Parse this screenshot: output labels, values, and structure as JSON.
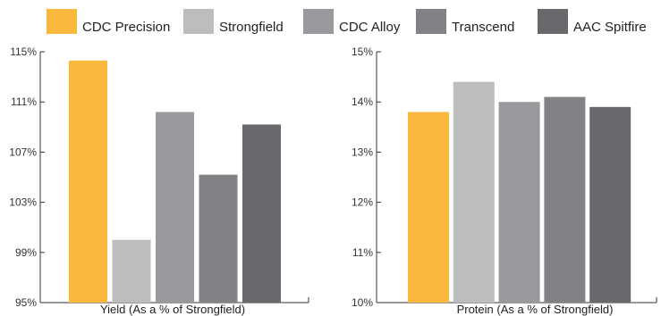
{
  "legend": [
    {
      "name": "CDC Precision",
      "color": "#fbb83f"
    },
    {
      "name": "Strongfield",
      "color": "#bdbcbf"
    },
    {
      "name": "CDC Alloy",
      "color": "#9a999d"
    },
    {
      "name": "Transcend",
      "color": "#828185"
    },
    {
      "name": "AAC Spitfire",
      "color": "#69686c"
    }
  ],
  "chart_data": [
    {
      "type": "bar",
      "xlabel": "Yield (As a % of Strongfield)",
      "ylabel": "",
      "categories": [
        "CDC Precision",
        "Strongfield",
        "CDC Alloy",
        "Transcend",
        "AAC Spitfire"
      ],
      "values": [
        114.3,
        100,
        110.2,
        105.2,
        109.2
      ],
      "colors": [
        "#fbb83f",
        "#bdbcbf",
        "#9a999d",
        "#828185",
        "#69686c"
      ],
      "ylim": [
        95,
        115
      ],
      "yticks": [
        95,
        99,
        103,
        107,
        111,
        115
      ],
      "ytick_labels": [
        "95%",
        "99%",
        "103%",
        "107%",
        "111%",
        "115%"
      ],
      "grid": false
    },
    {
      "type": "bar",
      "xlabel": "Protein (As a % of Strongfield)",
      "ylabel": "",
      "categories": [
        "CDC Precision",
        "Strongfield",
        "CDC Alloy",
        "Transcend",
        "AAC Spitfire"
      ],
      "values": [
        13.8,
        14.4,
        14.0,
        14.1,
        13.9
      ],
      "colors": [
        "#fbb83f",
        "#bdbcbf",
        "#9a999d",
        "#828185",
        "#69686c"
      ],
      "ylim": [
        10,
        15
      ],
      "yticks": [
        10,
        11,
        12,
        13,
        14,
        15
      ],
      "ytick_labels": [
        "10%",
        "11%",
        "12%",
        "13%",
        "14%",
        "15%"
      ],
      "grid": false
    }
  ]
}
